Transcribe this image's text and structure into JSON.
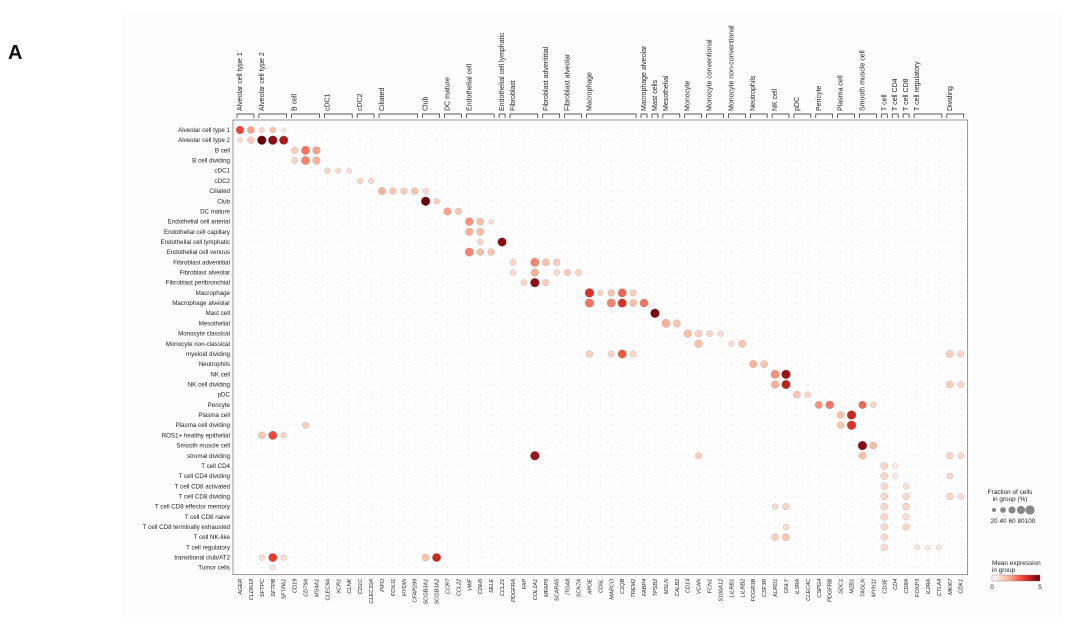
{
  "panel_letter": "A",
  "chart_data": {
    "type": "dotplot",
    "rows": [
      "Alveolar cell type 1",
      "Alveolar cell type 2",
      "B cell",
      "B cell dividing",
      "cDC1",
      "cDC2",
      "Ciliated",
      "Club",
      "DC mature",
      "Endothelial cell arterial",
      "Endothelial cell capillary",
      "Endothelial cell lymphatic",
      "Endothelial cell venous",
      "Fibroblast adventitial",
      "Fibroblast alveolar",
      "Fibroblast peribronchial",
      "Macrophage",
      "Macrophage alveolar",
      "Mast cell",
      "Mesothelial",
      "Monocyte classical",
      "Monocyte non-classical",
      "myeloid dividing",
      "Neutrophils",
      "NK cell",
      "NK cell dividing",
      "pDC",
      "Pericyte",
      "Plasma cell",
      "Plasma cell dividing",
      "ROS1+ healthy epithelial",
      "Smooth muscle cell",
      "stromal dividing",
      "T cell CD4",
      "T cell CD4 dividing",
      "T cell CD8 activated",
      "T cell CD8 dividing",
      "T cell CD8 effector memory",
      "T cell CD8 naive",
      "T cell CD8 terminally exhausted",
      "T cell NK-like",
      "T cell regulatory",
      "transitional club/AT2",
      "Tumor cells"
    ],
    "genes": [
      "AGER",
      "CLDN18",
      "SFTPC",
      "SFTPB",
      "SFTPA1",
      "CD19",
      "CD79A",
      "MS4A1",
      "CLEC9A",
      "XCR1",
      "CLNK",
      "CD1C",
      "CLEC10A",
      "PIFO",
      "FOXJ1",
      "HYDIN",
      "CFAP299",
      "SCGB3A1",
      "SCGB3A2",
      "CCR7",
      "CCL22",
      "VWF",
      "CDH5",
      "SELE",
      "CCL21",
      "PDGFRA",
      "FAP",
      "COL1A1",
      "MFAP5",
      "SCARA5",
      "ITGA8",
      "SCN7A",
      "APOE",
      "CD5L",
      "MARCO",
      "C1QB",
      "TREM2",
      "FABP4",
      "TPSB2",
      "MSLN",
      "CALB2",
      "CD14",
      "VCAN",
      "FCN1",
      "S100A12",
      "LILRB1",
      "LILRB2",
      "FCGR3B",
      "CSF3R",
      "KLRD1",
      "GNLY",
      "IL3RA",
      "CLEC4C",
      "CSPG4",
      "PDGFRB",
      "SDC1",
      "MZB1",
      "TAGLN",
      "MYH11",
      "CD3E",
      "CD4",
      "CD8A",
      "FOXP3",
      "IL2RA",
      "CTLA4",
      "MKI67",
      "CDK1"
    ],
    "groups": [
      {
        "label": "Alveolar cell type 1",
        "start": 0,
        "end": 1
      },
      {
        "label": "Alveolar cell type 2",
        "start": 2,
        "end": 4
      },
      {
        "label": "B cell",
        "start": 5,
        "end": 7
      },
      {
        "label": "cDC1",
        "start": 8,
        "end": 10
      },
      {
        "label": "cDC2",
        "start": 11,
        "end": 12
      },
      {
        "label": "Ciliated",
        "start": 13,
        "end": 16
      },
      {
        "label": "Club",
        "start": 17,
        "end": 18
      },
      {
        "label": "DC mature",
        "start": 19,
        "end": 20
      },
      {
        "label": "Endothelial cell",
        "start": 21,
        "end": 23
      },
      {
        "label": "Endothelial cell lymphatic",
        "start": 24,
        "end": 24
      },
      {
        "label": "Fibroblast",
        "start": 25,
        "end": 27
      },
      {
        "label": "Fibroblast adventitial",
        "start": 28,
        "end": 29
      },
      {
        "label": "Fibroblast alveolar",
        "start": 30,
        "end": 31
      },
      {
        "label": "Macrophage",
        "start": 32,
        "end": 36
      },
      {
        "label": "Macrophage alveolar",
        "start": 37,
        "end": 37
      },
      {
        "label": "Mast cells",
        "start": 38,
        "end": 38
      },
      {
        "label": "Mesothelial",
        "start": 39,
        "end": 40
      },
      {
        "label": "Monocyte",
        "start": 41,
        "end": 42
      },
      {
        "label": "Monocyte conventional",
        "start": 43,
        "end": 44
      },
      {
        "label": "Monocyte non-conventional",
        "start": 45,
        "end": 46
      },
      {
        "label": "Neutrophils",
        "start": 47,
        "end": 48
      },
      {
        "label": "NK cell",
        "start": 49,
        "end": 50
      },
      {
        "label": "pDC",
        "start": 51,
        "end": 52
      },
      {
        "label": "Pericyte",
        "start": 53,
        "end": 54
      },
      {
        "label": "Plasma cell",
        "start": 55,
        "end": 56
      },
      {
        "label": "Smooth muscle cell",
        "start": 57,
        "end": 58
      },
      {
        "label": "T cell",
        "start": 59,
        "end": 59
      },
      {
        "label": "T cell CD4",
        "start": 60,
        "end": 60
      },
      {
        "label": "T cell CD8",
        "start": 61,
        "end": 61
      },
      {
        "label": "T cell regulatory",
        "start": 62,
        "end": 64
      },
      {
        "label": "Dividing",
        "start": 65,
        "end": 66
      }
    ],
    "strong_points": [
      {
        "row": 0,
        "gene": 0,
        "frac": 75,
        "expr": 3.2
      },
      {
        "row": 0,
        "gene": 1,
        "frac": 60,
        "expr": 2.0
      },
      {
        "row": 0,
        "gene": 2,
        "frac": 30,
        "expr": 1.0
      },
      {
        "row": 0,
        "gene": 3,
        "frac": 40,
        "expr": 1.6
      },
      {
        "row": 0,
        "gene": 4,
        "frac": 20,
        "expr": 0.6
      },
      {
        "row": 1,
        "gene": 0,
        "frac": 30,
        "expr": 0.8
      },
      {
        "row": 1,
        "gene": 1,
        "frac": 55,
        "expr": 1.2
      },
      {
        "row": 1,
        "gene": 2,
        "frac": 95,
        "expr": 5.0
      },
      {
        "row": 1,
        "gene": 3,
        "frac": 95,
        "expr": 4.6
      },
      {
        "row": 1,
        "gene": 4,
        "frac": 90,
        "expr": 4.2
      },
      {
        "row": 2,
        "gene": 5,
        "frac": 50,
        "expr": 1.2
      },
      {
        "row": 2,
        "gene": 6,
        "frac": 85,
        "expr": 2.6
      },
      {
        "row": 2,
        "gene": 7,
        "frac": 70,
        "expr": 2.0
      },
      {
        "row": 3,
        "gene": 5,
        "frac": 45,
        "expr": 1.0
      },
      {
        "row": 3,
        "gene": 6,
        "frac": 85,
        "expr": 2.4
      },
      {
        "row": 3,
        "gene": 7,
        "frac": 70,
        "expr": 1.8
      },
      {
        "row": 4,
        "gene": 8,
        "frac": 40,
        "expr": 1.0
      },
      {
        "row": 4,
        "gene": 9,
        "frac": 35,
        "expr": 0.8
      },
      {
        "row": 4,
        "gene": 10,
        "frac": 30,
        "expr": 0.7
      },
      {
        "row": 5,
        "gene": 11,
        "frac": 40,
        "expr": 1.0
      },
      {
        "row": 5,
        "gene": 12,
        "frac": 35,
        "expr": 0.9
      },
      {
        "row": 6,
        "gene": 13,
        "frac": 65,
        "expr": 1.8
      },
      {
        "row": 6,
        "gene": 14,
        "frac": 55,
        "expr": 1.4
      },
      {
        "row": 6,
        "gene": 15,
        "frac": 50,
        "expr": 1.3
      },
      {
        "row": 6,
        "gene": 16,
        "frac": 55,
        "expr": 1.5
      },
      {
        "row": 6,
        "gene": 17,
        "frac": 40,
        "expr": 0.9
      },
      {
        "row": 7,
        "gene": 17,
        "frac": 95,
        "expr": 5.0
      },
      {
        "row": 7,
        "gene": 18,
        "frac": 40,
        "expr": 1.2
      },
      {
        "row": 8,
        "gene": 19,
        "frac": 70,
        "expr": 2.0
      },
      {
        "row": 8,
        "gene": 20,
        "frac": 50,
        "expr": 1.4
      },
      {
        "row": 9,
        "gene": 21,
        "frac": 75,
        "expr": 2.2
      },
      {
        "row": 9,
        "gene": 22,
        "frac": 60,
        "expr": 1.6
      },
      {
        "row": 9,
        "gene": 23,
        "frac": 30,
        "expr": 0.8
      },
      {
        "row": 10,
        "gene": 21,
        "frac": 70,
        "expr": 1.8
      },
      {
        "row": 10,
        "gene": 22,
        "frac": 65,
        "expr": 1.6
      },
      {
        "row": 11,
        "gene": 24,
        "frac": 90,
        "expr": 4.6
      },
      {
        "row": 11,
        "gene": 22,
        "frac": 40,
        "expr": 1.0
      },
      {
        "row": 12,
        "gene": 21,
        "frac": 85,
        "expr": 2.4
      },
      {
        "row": 12,
        "gene": 22,
        "frac": 60,
        "expr": 1.6
      },
      {
        "row": 12,
        "gene": 23,
        "frac": 55,
        "expr": 1.4
      },
      {
        "row": 13,
        "gene": 25,
        "frac": 45,
        "expr": 1.0
      },
      {
        "row": 13,
        "gene": 27,
        "frac": 85,
        "expr": 2.4
      },
      {
        "row": 13,
        "gene": 28,
        "frac": 60,
        "expr": 1.6
      },
      {
        "row": 13,
        "gene": 29,
        "frac": 55,
        "expr": 1.2
      },
      {
        "row": 14,
        "gene": 25,
        "frac": 40,
        "expr": 0.9
      },
      {
        "row": 14,
        "gene": 27,
        "frac": 70,
        "expr": 1.8
      },
      {
        "row": 14,
        "gene": 29,
        "frac": 40,
        "expr": 0.9
      },
      {
        "row": 14,
        "gene": 30,
        "frac": 50,
        "expr": 1.3
      },
      {
        "row": 14,
        "gene": 31,
        "frac": 45,
        "expr": 1.1
      },
      {
        "row": 15,
        "gene": 26,
        "frac": 45,
        "expr": 1.0
      },
      {
        "row": 15,
        "gene": 27,
        "frac": 95,
        "expr": 4.5
      },
      {
        "row": 15,
        "gene": 28,
        "frac": 50,
        "expr": 1.2
      },
      {
        "row": 16,
        "gene": 32,
        "frac": 95,
        "expr": 3.6
      },
      {
        "row": 16,
        "gene": 33,
        "frac": 40,
        "expr": 1.0
      },
      {
        "row": 16,
        "gene": 34,
        "frac": 55,
        "expr": 1.4
      },
      {
        "row": 16,
        "gene": 35,
        "frac": 85,
        "expr": 2.8
      },
      {
        "row": 16,
        "gene": 36,
        "frac": 50,
        "expr": 1.2
      },
      {
        "row": 17,
        "gene": 32,
        "frac": 90,
        "expr": 2.6
      },
      {
        "row": 17,
        "gene": 34,
        "frac": 85,
        "expr": 2.4
      },
      {
        "row": 17,
        "gene": 35,
        "frac": 90,
        "expr": 3.6
      },
      {
        "row": 17,
        "gene": 36,
        "frac": 60,
        "expr": 1.6
      },
      {
        "row": 17,
        "gene": 37,
        "frac": 80,
        "expr": 2.6
      },
      {
        "row": 18,
        "gene": 38,
        "frac": 95,
        "expr": 4.8
      },
      {
        "row": 19,
        "gene": 39,
        "frac": 80,
        "expr": 1.8
      },
      {
        "row": 19,
        "gene": 40,
        "frac": 65,
        "expr": 1.4
      },
      {
        "row": 20,
        "gene": 41,
        "frac": 70,
        "expr": 1.6
      },
      {
        "row": 20,
        "gene": 42,
        "frac": 55,
        "expr": 1.2
      },
      {
        "row": 20,
        "gene": 43,
        "frac": 45,
        "expr": 1.0
      },
      {
        "row": 20,
        "gene": 44,
        "frac": 40,
        "expr": 0.8
      },
      {
        "row": 21,
        "gene": 42,
        "frac": 70,
        "expr": 1.6
      },
      {
        "row": 21,
        "gene": 45,
        "frac": 40,
        "expr": 0.8
      },
      {
        "row": 21,
        "gene": 46,
        "frac": 65,
        "expr": 1.4
      },
      {
        "row": 22,
        "gene": 32,
        "frac": 55,
        "expr": 1.2
      },
      {
        "row": 22,
        "gene": 34,
        "frac": 50,
        "expr": 1.0
      },
      {
        "row": 22,
        "gene": 35,
        "frac": 85,
        "expr": 3.0
      },
      {
        "row": 22,
        "gene": 36,
        "frac": 50,
        "expr": 1.0
      },
      {
        "row": 22,
        "gene": 65,
        "frac": 60,
        "expr": 1.2
      },
      {
        "row": 22,
        "gene": 66,
        "frac": 50,
        "expr": 1.0
      },
      {
        "row": 23,
        "gene": 47,
        "frac": 65,
        "expr": 1.8
      },
      {
        "row": 23,
        "gene": 48,
        "frac": 60,
        "expr": 1.5
      },
      {
        "row": 24,
        "gene": 49,
        "frac": 85,
        "expr": 2.2
      },
      {
        "row": 24,
        "gene": 50,
        "frac": 95,
        "expr": 4.4
      },
      {
        "row": 25,
        "gene": 49,
        "frac": 70,
        "expr": 1.8
      },
      {
        "row": 25,
        "gene": 50,
        "frac": 90,
        "expr": 4.0
      },
      {
        "row": 25,
        "gene": 65,
        "frac": 60,
        "expr": 1.2
      },
      {
        "row": 25,
        "gene": 66,
        "frac": 50,
        "expr": 1.0
      },
      {
        "row": 26,
        "gene": 51,
        "frac": 60,
        "expr": 1.4
      },
      {
        "row": 26,
        "gene": 52,
        "frac": 45,
        "expr": 1.0
      },
      {
        "row": 27,
        "gene": 53,
        "frac": 65,
        "expr": 2.2
      },
      {
        "row": 27,
        "gene": 54,
        "frac": 75,
        "expr": 2.6
      },
      {
        "row": 27,
        "gene": 57,
        "frac": 70,
        "expr": 2.8
      },
      {
        "row": 27,
        "gene": 58,
        "frac": 40,
        "expr": 1.0
      },
      {
        "row": 28,
        "gene": 55,
        "frac": 60,
        "expr": 1.6
      },
      {
        "row": 28,
        "gene": 56,
        "frac": 95,
        "expr": 3.8
      },
      {
        "row": 29,
        "gene": 55,
        "frac": 55,
        "expr": 1.4
      },
      {
        "row": 29,
        "gene": 56,
        "frac": 95,
        "expr": 3.6
      },
      {
        "row": 29,
        "gene": 6,
        "frac": 50,
        "expr": 1.2
      },
      {
        "row": 30,
        "gene": 2,
        "frac": 60,
        "expr": 1.4
      },
      {
        "row": 30,
        "gene": 3,
        "frac": 85,
        "expr": 3.2
      },
      {
        "row": 30,
        "gene": 4,
        "frac": 40,
        "expr": 1.0
      },
      {
        "row": 31,
        "gene": 57,
        "frac": 95,
        "expr": 4.6
      },
      {
        "row": 31,
        "gene": 58,
        "frac": 60,
        "expr": 1.6
      },
      {
        "row": 32,
        "gene": 27,
        "frac": 95,
        "expr": 4.4
      },
      {
        "row": 32,
        "gene": 57,
        "frac": 60,
        "expr": 1.6
      },
      {
        "row": 32,
        "gene": 42,
        "frac": 50,
        "expr": 1.2
      },
      {
        "row": 32,
        "gene": 65,
        "frac": 55,
        "expr": 1.1
      },
      {
        "row": 32,
        "gene": 66,
        "frac": 45,
        "expr": 0.9
      },
      {
        "row": 33,
        "gene": 59,
        "frac": 60,
        "expr": 1.0
      },
      {
        "row": 33,
        "gene": 60,
        "frac": 30,
        "expr": 0.5
      },
      {
        "row": 34,
        "gene": 59,
        "frac": 60,
        "expr": 1.0
      },
      {
        "row": 34,
        "gene": 60,
        "frac": 30,
        "expr": 0.5
      },
      {
        "row": 34,
        "gene": 65,
        "frac": 45,
        "expr": 0.9
      },
      {
        "row": 35,
        "gene": 59,
        "frac": 55,
        "expr": 0.9
      },
      {
        "row": 35,
        "gene": 61,
        "frac": 40,
        "expr": 0.7
      },
      {
        "row": 36,
        "gene": 59,
        "frac": 60,
        "expr": 1.0
      },
      {
        "row": 36,
        "gene": 61,
        "frac": 50,
        "expr": 0.9
      },
      {
        "row": 36,
        "gene": 65,
        "frac": 55,
        "expr": 1.0
      },
      {
        "row": 36,
        "gene": 66,
        "frac": 45,
        "expr": 0.8
      },
      {
        "row": 37,
        "gene": 59,
        "frac": 60,
        "expr": 1.0
      },
      {
        "row": 37,
        "gene": 61,
        "frac": 55,
        "expr": 1.0
      },
      {
        "row": 37,
        "gene": 49,
        "frac": 40,
        "expr": 0.8
      },
      {
        "row": 37,
        "gene": 50,
        "frac": 50,
        "expr": 1.0
      },
      {
        "row": 38,
        "gene": 59,
        "frac": 60,
        "expr": 1.0
      },
      {
        "row": 38,
        "gene": 61,
        "frac": 50,
        "expr": 0.8
      },
      {
        "row": 39,
        "gene": 59,
        "frac": 55,
        "expr": 0.9
      },
      {
        "row": 39,
        "gene": 61,
        "frac": 55,
        "expr": 1.0
      },
      {
        "row": 39,
        "gene": 50,
        "frac": 40,
        "expr": 0.8
      },
      {
        "row": 40,
        "gene": 59,
        "frac": 55,
        "expr": 0.9
      },
      {
        "row": 40,
        "gene": 49,
        "frac": 55,
        "expr": 1.2
      },
      {
        "row": 40,
        "gene": 50,
        "frac": 60,
        "expr": 1.4
      },
      {
        "row": 41,
        "gene": 59,
        "frac": 55,
        "expr": 0.9
      },
      {
        "row": 41,
        "gene": 62,
        "frac": 30,
        "expr": 0.5
      },
      {
        "row": 41,
        "gene": 63,
        "frac": 25,
        "expr": 0.4
      },
      {
        "row": 41,
        "gene": 64,
        "frac": 30,
        "expr": 0.5
      },
      {
        "row": 42,
        "gene": 3,
        "frac": 85,
        "expr": 3.4
      },
      {
        "row": 42,
        "gene": 2,
        "frac": 40,
        "expr": 0.8
      },
      {
        "row": 42,
        "gene": 4,
        "frac": 40,
        "expr": 0.9
      },
      {
        "row": 42,
        "gene": 17,
        "frac": 60,
        "expr": 1.5
      },
      {
        "row": 42,
        "gene": 18,
        "frac": 85,
        "expr": 3.8
      },
      {
        "row": 43,
        "gene": 3,
        "frac": 30,
        "expr": 0.5
      }
    ],
    "legend_size": {
      "title": "Fraction of cells\nin group (%)",
      "ticks": [
        "20",
        "40",
        "60",
        "80",
        "100"
      ]
    },
    "legend_color": {
      "title": "Mean expression\nin group",
      "min": "0",
      "max": "5"
    }
  }
}
